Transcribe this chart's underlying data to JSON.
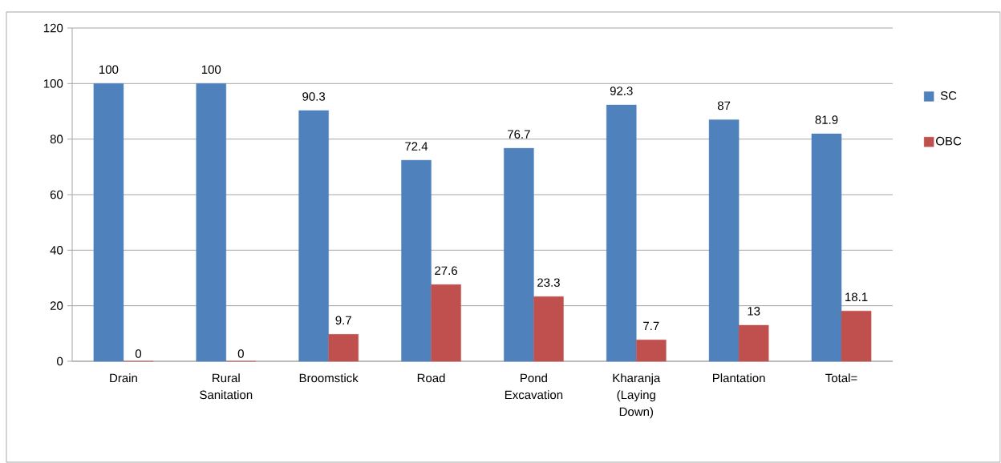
{
  "chart_data": {
    "type": "bar",
    "categories": [
      "Drain",
      "Rural Sanitation",
      "Broomstick",
      "Road",
      "Pond Excavation",
      "Kharanja (Laying Down)",
      "Plantation",
      "Total="
    ],
    "series": [
      {
        "name": "SC",
        "color": "#4f81bd",
        "values": [
          100,
          100,
          90.3,
          72.4,
          76.7,
          92.3,
          87,
          81.9
        ]
      },
      {
        "name": "OBC",
        "color": "#c0504d",
        "values": [
          0,
          0,
          9.7,
          27.6,
          23.3,
          7.7,
          13,
          18.1
        ]
      }
    ],
    "ylim": [
      0,
      120
    ],
    "yticks": [
      0,
      20,
      40,
      60,
      80,
      100,
      120
    ],
    "grid": "y",
    "legend": "right",
    "data_labels": true
  }
}
